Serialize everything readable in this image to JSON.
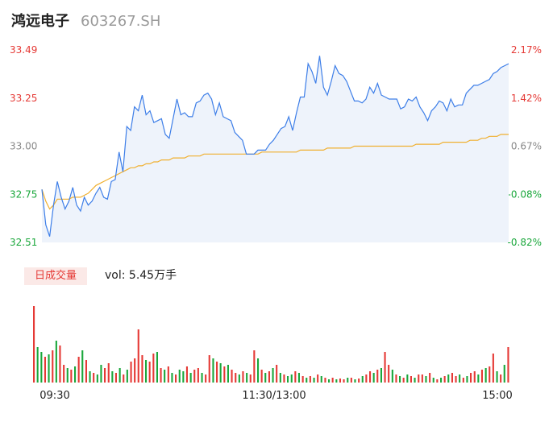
{
  "header": {
    "name": "鸿远电子",
    "code": "603267.SH"
  },
  "colors": {
    "price_line": "#3d7ee8",
    "avg_line": "#f0b030",
    "up": "#e53935",
    "down": "#1aa73b",
    "area_fill": "#eef3fb",
    "neutral": "#888888"
  },
  "volume": {
    "tag": "日成交量",
    "label": "vol: 5.45万手"
  },
  "chart_data": [
    {
      "type": "line",
      "title": "",
      "y_ticks_left": [
        "33.49",
        "33.25",
        "33.00",
        "32.75",
        "32.51"
      ],
      "y_ticks_right": [
        "2.17%",
        "1.42%",
        "0.67%",
        "-0.08%",
        "-0.82%"
      ],
      "ylim": [
        32.51,
        33.49
      ],
      "prev_close": 32.78,
      "series": [
        {
          "values": [
            32.78,
            32.6,
            32.54,
            32.7,
            32.82,
            32.74,
            32.68,
            32.72,
            32.79,
            32.7,
            32.67,
            32.74,
            32.7,
            32.72,
            32.76,
            32.79,
            32.74,
            32.73,
            32.82,
            32.83,
            32.97,
            32.87,
            33.1,
            33.08,
            33.2,
            33.18,
            33.26,
            33.16,
            33.18,
            33.12,
            33.13,
            33.14,
            33.06,
            33.04,
            33.14,
            33.24,
            33.16,
            33.17,
            33.15,
            33.15,
            33.22,
            33.23,
            33.26,
            33.27,
            33.24,
            33.16,
            33.22,
            33.15,
            33.14,
            33.13,
            33.07,
            33.05,
            33.03,
            32.96,
            32.96,
            32.96,
            32.98,
            32.98,
            32.98,
            33.01,
            33.03,
            33.06,
            33.09,
            33.1,
            33.15,
            33.08,
            33.17,
            33.25,
            33.25,
            33.42,
            33.38,
            33.32,
            33.46,
            33.3,
            33.26,
            33.33,
            33.41,
            33.37,
            33.36,
            33.33,
            33.28,
            33.23,
            33.23,
            33.22,
            33.24,
            33.3,
            33.27,
            33.32,
            33.26,
            33.25,
            33.24,
            33.24,
            33.24,
            33.19,
            33.2,
            33.24,
            33.23,
            33.25,
            33.2,
            33.17,
            33.13,
            33.18,
            33.2,
            33.23,
            33.22,
            33.18,
            33.24,
            33.2,
            33.21,
            33.21,
            33.27,
            33.29,
            33.31,
            33.31,
            33.32,
            33.33,
            33.34,
            33.37,
            33.38,
            33.4,
            33.41,
            33.42
          ],
          "avg": [
            32.78,
            32.72,
            32.68,
            32.7,
            32.73,
            32.73,
            32.73,
            32.73,
            32.74,
            32.74,
            32.74,
            32.75,
            32.76,
            32.78,
            32.8,
            32.81,
            32.82,
            32.83,
            32.84,
            32.85,
            32.86,
            32.87,
            32.88,
            32.89,
            32.89,
            32.9,
            32.9,
            32.91,
            32.91,
            32.92,
            32.92,
            32.93,
            32.93,
            32.93,
            32.94,
            32.94,
            32.94,
            32.94,
            32.95,
            32.95,
            32.95,
            32.95,
            32.96,
            32.96,
            32.96,
            32.96,
            32.96,
            32.96,
            32.96,
            32.96,
            32.96,
            32.96,
            32.96,
            32.96,
            32.96,
            32.96,
            32.96,
            32.97,
            32.97,
            32.97,
            32.97,
            32.97,
            32.97,
            32.97,
            32.97,
            32.97,
            32.97,
            32.98,
            32.98,
            32.98,
            32.98,
            32.98,
            32.98,
            32.98,
            32.99,
            32.99,
            32.99,
            32.99,
            32.99,
            32.99,
            32.99,
            33.0,
            33.0,
            33.0,
            33.0,
            33.0,
            33.0,
            33.0,
            33.0,
            33.0,
            33.0,
            33.0,
            33.0,
            33.0,
            33.0,
            33.0,
            33.0,
            33.01,
            33.01,
            33.01,
            33.01,
            33.01,
            33.01,
            33.01,
            33.02,
            33.02,
            33.02,
            33.02,
            33.02,
            33.02,
            33.02,
            33.03,
            33.03,
            33.03,
            33.04,
            33.04,
            33.05,
            33.05,
            33.05,
            33.06,
            33.06,
            33.06
          ]
        }
      ]
    },
    {
      "type": "bar",
      "title": "",
      "x_ticks": [
        "09:30",
        "11:30/13:00",
        "15:00"
      ],
      "series": [
        {
          "values": [
            95,
            44,
            38,
            32,
            35,
            40,
            52,
            46,
            22,
            18,
            16,
            20,
            32,
            40,
            28,
            14,
            12,
            10,
            22,
            18,
            24,
            14,
            12,
            18,
            10,
            16,
            26,
            30,
            66,
            34,
            28,
            26,
            36,
            38,
            18,
            16,
            20,
            12,
            10,
            16,
            14,
            20,
            12,
            16,
            18,
            12,
            10,
            34,
            30,
            26,
            24,
            20,
            22,
            16,
            12,
            10,
            14,
            12,
            10,
            40,
            30,
            16,
            12,
            14,
            18,
            22,
            12,
            10,
            8,
            10,
            14,
            12,
            8,
            6,
            8,
            6,
            10,
            8,
            6,
            4,
            6,
            4,
            5,
            4,
            6,
            6,
            4,
            5,
            8,
            10,
            14,
            12,
            16,
            18,
            38,
            22,
            16,
            10,
            8,
            6,
            10,
            8,
            6,
            10,
            10,
            8,
            12,
            6,
            4,
            6,
            8,
            10,
            12,
            8,
            10,
            6,
            8,
            12,
            14,
            10,
            16,
            18,
            20,
            36,
            14,
            10,
            22,
            44
          ],
          "dirs": [
            1,
            0,
            0,
            1,
            0,
            1,
            0,
            1,
            1,
            0,
            1,
            0,
            1,
            0,
            1,
            0,
            1,
            0,
            0,
            1,
            1,
            0,
            1,
            0,
            1,
            0,
            1,
            1,
            1,
            1,
            0,
            1,
            1,
            0,
            1,
            0,
            1,
            0,
            1,
            0,
            0,
            1,
            0,
            1,
            1,
            0,
            1,
            1,
            0,
            1,
            0,
            1,
            0,
            1,
            1,
            0,
            1,
            0,
            1,
            1,
            0,
            1,
            0,
            1,
            0,
            1,
            0,
            1,
            0,
            0,
            1,
            0,
            1,
            0,
            1,
            0,
            1,
            0,
            1,
            0,
            1,
            0,
            1,
            1,
            0,
            1,
            0,
            1,
            0,
            1,
            1,
            0,
            1,
            0,
            1,
            1,
            0,
            1,
            0,
            1,
            0,
            1,
            0,
            1,
            1,
            0,
            1,
            0,
            1,
            0,
            1,
            0,
            1,
            1,
            0,
            1,
            0,
            1,
            1,
            0,
            1,
            0,
            1,
            1,
            0,
            1,
            0,
            1
          ]
        }
      ]
    }
  ]
}
